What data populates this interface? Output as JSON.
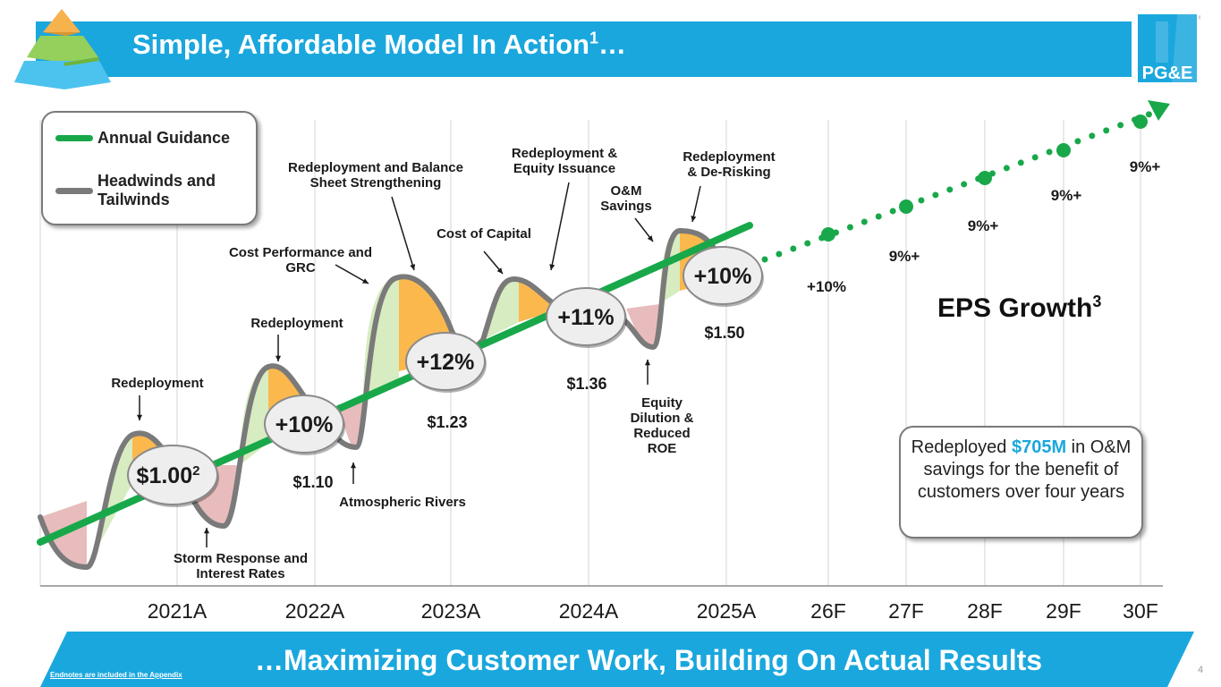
{
  "header": {
    "title": "Simple, Affordable Model In Action",
    "title_sup": "1",
    "title_suffix": "…"
  },
  "footer": {
    "title": "…Maximizing Customer Work, Building On Actual Results",
    "endnote": "Endnotes are included in the Appendix",
    "page_number": "4"
  },
  "logo": {
    "text": "PG&E"
  },
  "legend": {
    "items": [
      {
        "label": "Annual Guidance",
        "color": "#18a84a"
      },
      {
        "label": "Headwinds and Tailwinds",
        "color": "#7a7a7a"
      }
    ]
  },
  "eps_title": {
    "text": "EPS Growth",
    "sup": "3"
  },
  "callout": {
    "pre": "Redeployed ",
    "highlight": "$705M",
    "post": " in O&M savings for the benefit of customers over four years"
  },
  "chart_data": {
    "type": "line",
    "categories": [
      "2021A",
      "2022A",
      "2023A",
      "2024A",
      "2025A",
      "26F",
      "27F",
      "28F",
      "29F",
      "30F"
    ],
    "series": [
      {
        "name": "Annual Guidance",
        "values": [
          1.0,
          1.1,
          1.23,
          1.36,
          1.5,
          null,
          null,
          null,
          null,
          null
        ]
      }
    ],
    "eps_labels": [
      {
        "value": "$1.00",
        "sup": "2"
      },
      {
        "value": "$1.10"
      },
      {
        "value": "$1.23"
      },
      {
        "value": "$1.36"
      },
      {
        "value": "$1.50"
      }
    ],
    "growth_badges": [
      "+10%",
      "+12%",
      "+11%",
      "+10%"
    ],
    "forecast_growth": [
      "+10%",
      "9%+",
      "9%+",
      "9%+",
      "9%+"
    ],
    "annotations": [
      "Redeployment",
      "Storm Response and Interest Rates",
      "Redeployment",
      "Atmospheric Rivers",
      "Cost Performance and GRC",
      "Redeployment and Balance Sheet Strengthening",
      "Cost of Capital",
      "Redeployment & Equity Issuance",
      "Equity Dilution & Reduced ROE",
      "O&M Savings",
      "Redeployment & De-Risking"
    ],
    "colors": {
      "guidance": "#18a84a",
      "wave": "#7a7a7a",
      "tailwind": "#d7ecc0",
      "redeployment": "#fbb84d",
      "headwind": "#e8bcbc",
      "grid": "#d6d6d6"
    }
  }
}
